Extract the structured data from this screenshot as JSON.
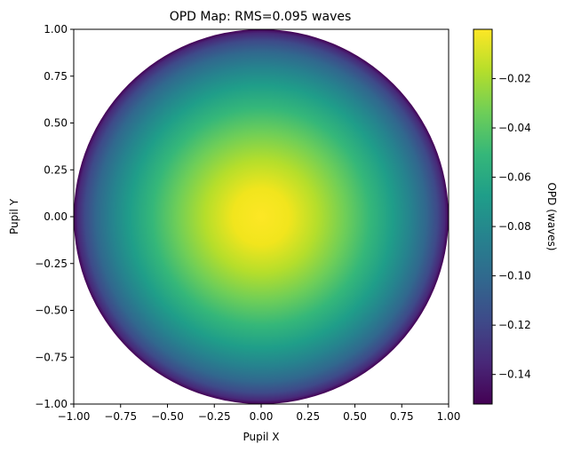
{
  "chart_data": {
    "type": "heatmap",
    "title": "OPD Map: RMS=0.095 waves",
    "xlabel": "Pupil X",
    "ylabel": "Pupil Y",
    "xlim": [
      -1.0,
      1.0
    ],
    "ylim": [
      -1.0,
      1.0
    ],
    "xticks": [
      "−1.00",
      "−0.75",
      "−0.50",
      "−0.25",
      "0.00",
      "0.25",
      "0.50",
      "0.75",
      "1.00"
    ],
    "yticks": [
      "−1.00",
      "−0.75",
      "−0.50",
      "−0.25",
      "0.00",
      "0.25",
      "0.50",
      "0.75",
      "1.00"
    ],
    "pupil_shape": "circle",
    "pupil_radius": 1.0,
    "opd_center": 0.0,
    "opd_edge": -0.152,
    "opd_profile": "defocus (quadratic in radius)",
    "rms_waves": 0.095,
    "colormap": "viridis",
    "colorbar": {
      "label": "OPD (waves)",
      "range": [
        -0.152,
        0.0
      ],
      "ticks": [
        -0.02,
        -0.04,
        -0.06,
        -0.08,
        -0.1,
        -0.12,
        -0.14
      ],
      "tick_labels": [
        "−0.02",
        "−0.04",
        "−0.06",
        "−0.08",
        "−0.10",
        "−0.12",
        "−0.14"
      ]
    },
    "grid": false
  }
}
